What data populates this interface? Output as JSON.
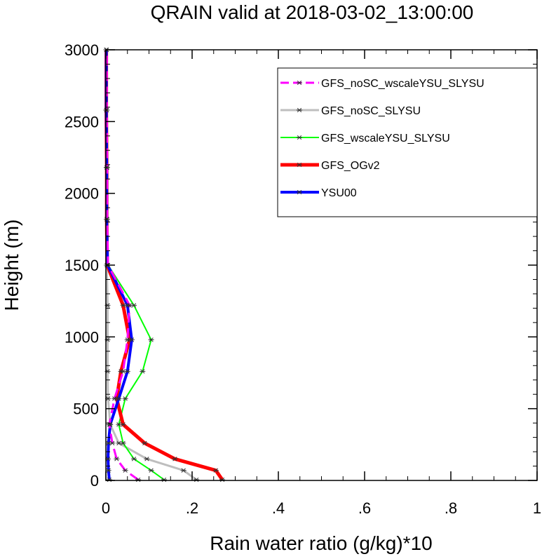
{
  "chart_data": {
    "type": "line",
    "title": "QRAIN valid at 2018-03-02_13:00:00",
    "xlabel": "Rain water ratio (g/kg)*10",
    "ylabel": "Height (m)",
    "xlim": [
      0,
      1
    ],
    "ylim": [
      0,
      3000
    ],
    "x_ticks": [
      0,
      0.2,
      0.4,
      0.6,
      0.8,
      1
    ],
    "x_tick_labels": [
      "0",
      ".2",
      ".4",
      ".6",
      ".8",
      "1"
    ],
    "y_ticks": [
      0,
      500,
      1000,
      1500,
      2000,
      2500,
      3000
    ],
    "y_tick_labels": [
      "0",
      "500",
      "1000",
      "1500",
      "2000",
      "2500",
      "3000"
    ],
    "grid": false,
    "legend_position": "top-right",
    "series": [
      {
        "name": "GFS_noSC_wscaleYSU_SLYSU",
        "color": "#ff00ff",
        "dashed": true,
        "width": 3,
        "points": [
          [
            0.075,
            5
          ],
          [
            0.045,
            70
          ],
          [
            0.025,
            150
          ],
          [
            0.015,
            260
          ],
          [
            0.008,
            390
          ],
          [
            0.02,
            570
          ],
          [
            0.04,
            760
          ],
          [
            0.05,
            980
          ],
          [
            0.055,
            1220
          ],
          [
            0.005,
            1500
          ],
          [
            0.003,
            1820
          ],
          [
            0.003,
            2180
          ],
          [
            0.002,
            2580
          ],
          [
            0.002,
            3000
          ]
        ]
      },
      {
        "name": "GFS_noSC_SLYSU",
        "color": "#bebebe",
        "dashed": false,
        "width": 3,
        "points": [
          [
            0.21,
            5
          ],
          [
            0.18,
            70
          ],
          [
            0.095,
            150
          ],
          [
            0.03,
            260
          ],
          [
            0.01,
            390
          ],
          [
            0.005,
            570
          ],
          [
            0.004,
            760
          ],
          [
            0.004,
            980
          ],
          [
            0.004,
            1220
          ],
          [
            0.002,
            1500
          ],
          [
            0.002,
            1820
          ],
          [
            0.002,
            2180
          ],
          [
            0.001,
            2580
          ],
          [
            0.001,
            3000
          ]
        ]
      },
      {
        "name": "GFS_wscaleYSU_SLYSU",
        "color": "#00ff00",
        "dashed": false,
        "width": 2,
        "points": [
          [
            0.135,
            5
          ],
          [
            0.105,
            70
          ],
          [
            0.065,
            150
          ],
          [
            0.04,
            260
          ],
          [
            0.03,
            390
          ],
          [
            0.045,
            570
          ],
          [
            0.085,
            760
          ],
          [
            0.105,
            980
          ],
          [
            0.065,
            1220
          ],
          [
            0.005,
            1500
          ],
          [
            0.003,
            1820
          ],
          [
            0.002,
            2180
          ],
          [
            0.001,
            2580
          ],
          [
            0.001,
            3000
          ]
        ]
      },
      {
        "name": "GFS_OGv2",
        "color": "#ff0000",
        "dashed": false,
        "width": 5,
        "points": [
          [
            0.27,
            5
          ],
          [
            0.255,
            70
          ],
          [
            0.16,
            150
          ],
          [
            0.09,
            260
          ],
          [
            0.04,
            390
          ],
          [
            0.025,
            570
          ],
          [
            0.035,
            760
          ],
          [
            0.055,
            980
          ],
          [
            0.04,
            1220
          ],
          [
            0.003,
            1500
          ],
          [
            0.002,
            1820
          ],
          [
            0.002,
            2180
          ],
          [
            0.001,
            2580
          ],
          [
            0.001,
            3000
          ]
        ]
      },
      {
        "name": "YSU00",
        "color": "#0000ff",
        "dashed": false,
        "width": 4,
        "points": [
          [
            0.008,
            5
          ],
          [
            0.006,
            70
          ],
          [
            0.005,
            150
          ],
          [
            0.006,
            260
          ],
          [
            0.01,
            390
          ],
          [
            0.03,
            570
          ],
          [
            0.05,
            760
          ],
          [
            0.06,
            980
          ],
          [
            0.05,
            1220
          ],
          [
            0.004,
            1500
          ],
          [
            0.002,
            1820
          ],
          [
            0.002,
            2180
          ],
          [
            0.001,
            2580
          ],
          [
            0.001,
            3000
          ]
        ]
      }
    ]
  }
}
